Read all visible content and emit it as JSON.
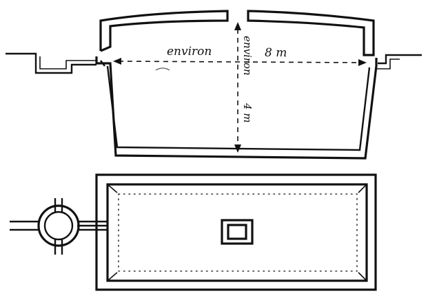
{
  "section": {
    "width_label": "environ",
    "width_value": "8 m",
    "depth_label": "environ",
    "depth_value": "4 m"
  }
}
